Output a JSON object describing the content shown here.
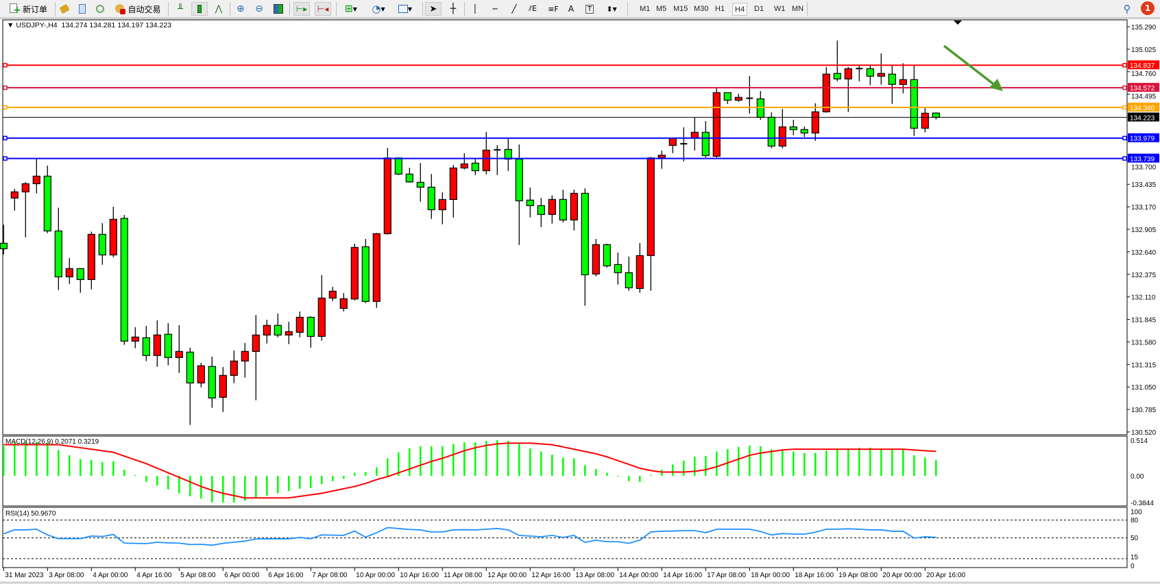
{
  "toolbar": {
    "new_order": "新订单",
    "auto_trading": "自动交易",
    "timeframes": [
      "M1",
      "M5",
      "M15",
      "M30",
      "H1",
      "H4",
      "D1",
      "W1",
      "MN"
    ],
    "active_timeframe": "H4",
    "notification_count": "1",
    "icons": [
      "new-order-icon",
      "market-watch-icon",
      "navigator-icon",
      "signals-icon",
      "auto-trading-icon",
      "bar-chart-icon",
      "candlestick-icon",
      "line-chart-icon",
      "zoom-in-icon",
      "zoom-out-icon",
      "tile-windows-icon",
      "auto-scroll-icon",
      "chart-shift-icon",
      "new-chart-icon",
      "periods-icon",
      "templates-icon",
      "cursor-icon",
      "crosshair-icon",
      "vertical-line-icon",
      "horizontal-line-icon",
      "trendline-icon",
      "fibonacci-fan-icon",
      "fibonacci-icon",
      "text-icon",
      "text-label-icon",
      "arrows-icon",
      "search-icon",
      "notification-icon"
    ]
  },
  "chart": {
    "symbol_header": "USDJPY-,H4",
    "ohlc_header": "134.274 134.281 134.197 134.223",
    "macd_header": "MACD(12,26,9) 0.2071 0.3219",
    "rsi_header": "RSI(14) 50.9670"
  },
  "chart_data": {
    "type": "candlestick",
    "symbol": "USDJPY-",
    "timeframe": "H4",
    "colors": {
      "up": "#ff0000",
      "down": "#00ff00",
      "macd_hist": "#00ff00",
      "macd_signal": "#ff0000",
      "rsi": "#1e90ff",
      "arrow": "#4e9a2e"
    },
    "ylim": [
      130.52,
      135.29
    ],
    "price_ticks": [
      "135.290",
      "135.025",
      "134.760",
      "134.495",
      "133.700",
      "133.435",
      "133.170",
      "132.905",
      "132.640",
      "132.375",
      "132.110",
      "131.845",
      "131.580",
      "131.315",
      "131.050",
      "130.785",
      "130.520"
    ],
    "horizontal_lines": [
      {
        "price": "134.837",
        "color": "#ff0000"
      },
      {
        "price": "134.572",
        "color": "#dc143c"
      },
      {
        "price": "134.340",
        "color": "#ffa500"
      },
      {
        "price": "133.979",
        "color": "#0000ff"
      },
      {
        "price": "133.739",
        "color": "#0000ff"
      }
    ],
    "bid": {
      "price": "134.223",
      "color": "#000000"
    },
    "annotation_arrow": {
      "from_price": 134.98,
      "to_price": 134.56,
      "direction": "down-right"
    },
    "candles": [
      [
        132.741,
        132.959,
        132.61,
        132.677
      ],
      [
        133.273,
        133.381,
        133.125,
        133.346
      ],
      [
        133.346,
        133.461,
        132.811,
        133.442
      ],
      [
        133.442,
        133.738,
        133.327,
        133.531
      ],
      [
        133.531,
        133.655,
        132.86,
        132.886
      ],
      [
        132.886,
        133.16,
        132.191,
        132.346
      ],
      [
        132.346,
        132.567,
        132.263,
        132.443
      ],
      [
        132.443,
        132.443,
        132.158,
        132.314
      ],
      [
        132.314,
        132.878,
        132.199,
        132.846
      ],
      [
        132.846,
        132.978,
        132.489,
        132.604
      ],
      [
        132.604,
        133.171,
        132.577,
        133.023
      ],
      [
        133.034,
        133.074,
        131.546,
        131.589
      ],
      [
        131.589,
        131.753,
        131.506,
        131.637
      ],
      [
        131.629,
        131.769,
        131.353,
        131.42
      ],
      [
        131.42,
        131.833,
        131.288,
        131.662
      ],
      [
        131.67,
        131.801,
        131.304,
        131.396
      ],
      [
        131.396,
        131.777,
        131.216,
        131.468
      ],
      [
        131.46,
        131.511,
        130.603,
        131.097
      ],
      [
        131.097,
        131.334,
        131.046,
        131.299
      ],
      [
        131.291,
        131.406,
        130.805,
        130.92
      ],
      [
        130.928,
        131.285,
        130.756,
        131.186
      ],
      [
        131.186,
        131.479,
        131.095,
        131.355
      ],
      [
        131.355,
        131.567,
        131.159,
        131.468
      ],
      [
        131.468,
        131.897,
        130.893,
        131.661
      ],
      [
        131.661,
        131.841,
        131.562,
        131.774
      ],
      [
        131.774,
        131.913,
        131.634,
        131.661
      ],
      [
        131.661,
        131.817,
        131.554,
        131.701
      ],
      [
        131.693,
        131.938,
        131.634,
        131.87
      ],
      [
        131.87,
        131.881,
        131.513,
        131.645
      ],
      [
        131.645,
        132.365,
        131.594,
        132.096
      ],
      [
        132.096,
        132.228,
        132.061,
        132.177
      ],
      [
        131.975,
        132.155,
        131.94,
        132.088
      ],
      [
        132.085,
        132.735,
        132.069,
        132.692
      ],
      [
        132.7,
        132.792,
        132.037,
        132.056
      ],
      [
        132.056,
        132.862,
        131.981,
        132.854
      ],
      [
        132.854,
        133.863,
        132.843,
        133.745
      ],
      [
        133.745,
        133.745,
        133.544,
        133.555
      ],
      [
        133.555,
        133.63,
        133.455,
        133.463
      ],
      [
        133.458,
        133.686,
        133.23,
        133.401
      ],
      [
        133.401,
        133.557,
        133.028,
        133.136
      ],
      [
        133.136,
        133.34,
        132.964,
        133.256
      ],
      [
        133.256,
        133.662,
        133.044,
        133.627
      ],
      [
        133.627,
        133.799,
        133.611,
        133.675
      ],
      [
        133.684,
        133.738,
        133.544,
        133.595
      ],
      [
        133.595,
        134.049,
        133.552,
        133.837
      ],
      [
        133.84,
        133.896,
        133.544,
        133.841
      ],
      [
        133.845,
        133.969,
        133.593,
        133.732
      ],
      [
        133.732,
        133.904,
        132.722,
        133.241
      ],
      [
        133.249,
        133.397,
        133.045,
        133.184
      ],
      [
        133.184,
        133.276,
        132.932,
        133.08
      ],
      [
        133.08,
        133.305,
        132.972,
        133.257
      ],
      [
        133.257,
        133.372,
        132.988,
        133.015
      ],
      [
        133.015,
        133.372,
        132.892,
        133.329
      ],
      [
        133.329,
        133.386,
        132.005,
        132.37
      ],
      [
        132.379,
        132.792,
        132.352,
        132.725
      ],
      [
        132.725,
        132.736,
        132.456,
        132.475
      ],
      [
        132.491,
        132.631,
        132.255,
        132.395
      ],
      [
        132.395,
        132.583,
        132.182,
        132.217
      ],
      [
        132.209,
        132.744,
        132.158,
        132.596
      ],
      [
        132.596,
        133.756,
        132.182,
        133.746
      ],
      [
        133.746,
        133.832,
        133.617,
        133.778
      ],
      [
        133.893,
        133.988,
        133.802,
        133.979
      ],
      [
        133.907,
        134.106,
        133.705,
        133.912
      ],
      [
        133.979,
        134.221,
        133.832,
        134.047
      ],
      [
        134.047,
        134.178,
        133.751,
        133.773
      ],
      [
        133.765,
        134.573,
        133.751,
        134.514
      ],
      [
        134.514,
        134.514,
        134.38,
        134.425
      ],
      [
        134.425,
        134.501,
        134.407,
        134.458
      ],
      [
        134.447,
        134.71,
        134.267,
        134.448
      ],
      [
        134.441,
        134.533,
        134.194,
        134.224
      ],
      [
        134.224,
        134.283,
        133.859,
        133.885
      ],
      [
        133.885,
        134.323,
        133.859,
        134.111
      ],
      [
        134.111,
        134.194,
        134.012,
        134.079
      ],
      [
        134.079,
        134.114,
        133.993,
        134.039
      ],
      [
        134.039,
        134.388,
        133.947,
        134.288
      ],
      [
        134.288,
        134.815,
        134.278,
        134.732
      ],
      [
        134.74,
        135.126,
        134.648,
        134.675
      ],
      [
        134.675,
        134.815,
        134.286,
        134.796
      ],
      [
        134.796,
        134.842,
        134.648,
        134.797
      ],
      [
        134.796,
        134.831,
        134.6,
        134.707
      ],
      [
        134.707,
        134.976,
        134.608,
        134.74
      ],
      [
        134.732,
        134.831,
        134.382,
        134.611
      ],
      [
        134.61,
        134.86,
        134.506,
        134.667
      ],
      [
        134.667,
        134.828,
        134.003,
        134.095
      ],
      [
        134.095,
        134.336,
        134.046,
        134.272
      ],
      [
        134.274,
        134.281,
        134.197,
        134.223
      ]
    ],
    "time_labels": [
      {
        "bar": 0,
        "label": "31 Mar 2023"
      },
      {
        "bar": 4,
        "label": "3 Apr 08:00"
      },
      {
        "bar": 8,
        "label": "4 Apr 00:00"
      },
      {
        "bar": 12,
        "label": "4 Apr 16:00"
      },
      {
        "bar": 16,
        "label": "5 Apr 08:00"
      },
      {
        "bar": 20,
        "label": "6 Apr 00:00"
      },
      {
        "bar": 24,
        "label": "6 Apr 16:00"
      },
      {
        "bar": 28,
        "label": "7 Apr 08:00"
      },
      {
        "bar": 32,
        "label": "10 Apr 00:00"
      },
      {
        "bar": 36,
        "label": "10 Apr 16:00"
      },
      {
        "bar": 40,
        "label": "11 Apr 08:00"
      },
      {
        "bar": 44,
        "label": "12 Apr 00:00"
      },
      {
        "bar": 48,
        "label": "12 Apr 16:00"
      },
      {
        "bar": 52,
        "label": "13 Apr 08:00"
      },
      {
        "bar": 56,
        "label": "14 Apr 00:00"
      },
      {
        "bar": 60,
        "label": "14 Apr 16:00"
      },
      {
        "bar": 64,
        "label": "17 Apr 08:00"
      },
      {
        "bar": 68,
        "label": "18 Apr 00:00"
      },
      {
        "bar": 72,
        "label": "18 Apr 16:00"
      },
      {
        "bar": 76,
        "label": "19 Apr 08:00"
      },
      {
        "bar": 80,
        "label": "20 Apr 00:00"
      },
      {
        "bar": 84,
        "label": "20 Apr 16:00"
      }
    ],
    "macd": {
      "ylim": [
        -0.3844,
        0.514
      ],
      "ticks": [
        "0.514",
        "0.00",
        "-0.3844"
      ],
      "histogram": [
        0.39,
        0.44,
        0.44,
        0.45,
        0.44,
        0.34,
        0.27,
        0.22,
        0.21,
        0.18,
        0.19,
        0.08,
        0.01,
        -0.08,
        -0.13,
        -0.18,
        -0.23,
        -0.27,
        -0.3,
        -0.35,
        -0.35,
        -0.35,
        -0.33,
        -0.29,
        -0.26,
        -0.23,
        -0.2,
        -0.17,
        -0.16,
        -0.11,
        -0.07,
        -0.04,
        0.04,
        0.05,
        0.11,
        0.23,
        0.31,
        0.36,
        0.39,
        0.39,
        0.39,
        0.42,
        0.44,
        0.44,
        0.46,
        0.47,
        0.46,
        0.42,
        0.36,
        0.32,
        0.28,
        0.24,
        0.23,
        0.14,
        0.09,
        0.04,
        -0.01,
        -0.07,
        -0.08,
        0.01,
        0.08,
        0.15,
        0.2,
        0.25,
        0.26,
        0.32,
        0.35,
        0.38,
        0.4,
        0.39,
        0.35,
        0.34,
        0.32,
        0.3,
        0.3,
        0.33,
        0.35,
        0.36,
        0.37,
        0.37,
        0.36,
        0.35,
        0.35,
        0.27,
        0.24,
        0.2071
      ],
      "signal": [
        0.41,
        0.41,
        0.41,
        0.41,
        0.41,
        0.41,
        0.39,
        0.37,
        0.35,
        0.33,
        0.31,
        0.26,
        0.21,
        0.16,
        0.1,
        0.04,
        -0.02,
        -0.08,
        -0.14,
        -0.19,
        -0.23,
        -0.26,
        -0.29,
        -0.29,
        -0.29,
        -0.29,
        -0.29,
        -0.27,
        -0.25,
        -0.23,
        -0.2,
        -0.17,
        -0.14,
        -0.1,
        -0.05,
        -0.01,
        0.04,
        0.09,
        0.14,
        0.19,
        0.23,
        0.28,
        0.33,
        0.37,
        0.4,
        0.42,
        0.43,
        0.43,
        0.43,
        0.42,
        0.41,
        0.38,
        0.35,
        0.32,
        0.29,
        0.25,
        0.2,
        0.15,
        0.1,
        0.07,
        0.05,
        0.05,
        0.05,
        0.06,
        0.08,
        0.12,
        0.17,
        0.22,
        0.27,
        0.3,
        0.32,
        0.34,
        0.35,
        0.35,
        0.35,
        0.35,
        0.35,
        0.35,
        0.35,
        0.35,
        0.35,
        0.35,
        0.35,
        0.34,
        0.33,
        0.3219
      ]
    },
    "rsi": {
      "ylim": [
        0,
        100
      ],
      "ticks": [
        "100",
        "80",
        "50",
        "15",
        "0"
      ],
      "levels": [
        80,
        50,
        15
      ],
      "values": [
        56.9,
        63.5,
        63.5,
        64.6,
        55,
        48.8,
        48.8,
        48.8,
        53.1,
        52.3,
        55.8,
        41.2,
        40.8,
        40.4,
        42.7,
        41.5,
        41.2,
        38.8,
        39.2,
        37.7,
        40.8,
        42.7,
        44.6,
        48.1,
        48.5,
        48.5,
        48.5,
        50.8,
        48.5,
        55,
        54.6,
        54.2,
        61.5,
        51.2,
        58.8,
        67.3,
        65.8,
        64.2,
        63.5,
        60,
        60,
        63.5,
        63.8,
        63.5,
        64.6,
        65.8,
        63.5,
        54.2,
        53.1,
        51.9,
        54.2,
        50.8,
        54.2,
        42.3,
        46.2,
        43.5,
        43.5,
        40.8,
        46.2,
        60,
        61.2,
        61.5,
        62.3,
        62.3,
        58.8,
        64.6,
        64.6,
        64.6,
        64.6,
        60.8,
        55,
        57.3,
        56.5,
        56.2,
        59.6,
        64.6,
        64.6,
        65.4,
        64.6,
        63.5,
        63.5,
        61.2,
        61.2,
        49.6,
        51.9,
        50.967
      ]
    }
  }
}
